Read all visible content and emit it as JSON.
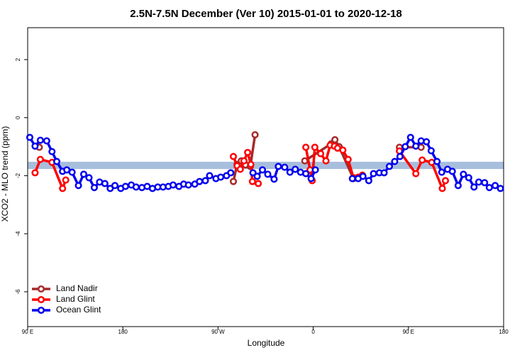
{
  "chart_data": {
    "type": "line",
    "title": "2.5N-7.5N December (Ver 10)   2015-01-01 to 2020-12-18",
    "x_label": "Longitude",
    "y_label": "XCO2 - MLO trend (ppm)",
    "xlim": [
      90,
      540
    ],
    "ylim": [
      -7.2,
      3.1
    ],
    "xticks": [
      {
        "value": 90,
        "label": "90 E"
      },
      180,
      {
        "value": 270,
        "label": "90 W"
      },
      {
        "value": 360,
        "label": "0"
      },
      {
        "value": 450,
        "label": "90 E"
      },
      {
        "value": 540,
        "label": "180"
      }
    ],
    "yticks": [
      2,
      0,
      -2,
      -4,
      -6
    ],
    "band": [
      -1.77,
      -1.52
    ],
    "band_color": "#a8bedd",
    "legend": "bottom-left",
    "series": [
      {
        "name": "Land Nadir",
        "color": "#a52a2a",
        "x": [
          101,
          140,
          284.5,
          288,
          292,
          296,
          300.5,
          305,
          340,
          352,
          377,
          380.5,
          384.5,
          398,
          420,
          441.5,
          462
        ],
        "values": [
          -1.02,
          null,
          -2.2,
          -1.61,
          -1.49,
          -1.63,
          -1.68,
          -0.59,
          null,
          -1.49,
          -0.9,
          -0.76,
          -1.0,
          -2.1,
          null,
          -1.02,
          -1.02
        ]
      },
      {
        "name": "Land Glint",
        "color": "#ff0000",
        "x": [
          97,
          102,
          113,
          123,
          126,
          200,
          284.5,
          288,
          291,
          294.5,
          298,
          301,
          302.5,
          308,
          330,
          353,
          357,
          359,
          361.5,
          367,
          372,
          376,
          380,
          383,
          388,
          393,
          398,
          402.5,
          406.5,
          420,
          441.5,
          457,
          463,
          472,
          482,
          485
        ],
        "values": [
          -1.9,
          -1.44,
          -1.54,
          -2.44,
          -2.15,
          null,
          -1.34,
          -1.66,
          -1.78,
          -1.49,
          -1.2,
          -1.61,
          -2.2,
          -2.27,
          null,
          -1.02,
          -1.8,
          -2.17,
          -1.02,
          -1.24,
          -1.49,
          -0.95,
          -0.98,
          -1.05,
          -1.12,
          -1.44,
          -2.07,
          -2.05,
          -1.98,
          null,
          -1.15,
          -1.93,
          -1.46,
          -1.54,
          -2.44,
          -2.17
        ]
      },
      {
        "name": "Ocean Glint",
        "color": "#0000ee",
        "x": [
          92,
          97,
          102,
          108,
          113,
          117.5,
          123,
          127,
          132,
          138,
          143,
          148,
          153,
          158,
          163,
          168,
          172.5,
          178,
          182.5,
          188,
          192.5,
          198,
          203,
          208,
          213,
          218,
          223,
          227.5,
          233,
          237.5,
          242,
          248,
          252.5,
          258,
          262,
          268,
          272.5,
          278,
          282,
          292,
          303,
          307,
          312,
          317,
          323,
          327,
          333,
          338,
          343,
          348,
          353,
          358,
          362,
          380,
          397,
          402.5,
          407,
          412.5,
          417,
          422.5,
          427,
          432,
          437,
          442,
          447,
          452,
          457,
          462,
          467,
          471.5,
          477,
          481.5,
          487,
          491.5,
          497,
          502,
          507,
          512,
          516.5,
          522,
          526.5,
          532,
          537
        ],
        "values": [
          -0.68,
          -0.98,
          -0.78,
          -0.8,
          -1.17,
          -1.51,
          -1.85,
          -1.8,
          -1.88,
          -2.34,
          -1.95,
          -2.07,
          -2.41,
          -2.22,
          -2.27,
          -2.44,
          -2.34,
          -2.44,
          -2.37,
          -2.32,
          -2.39,
          -2.41,
          -2.37,
          -2.44,
          -2.39,
          -2.39,
          -2.37,
          -2.32,
          -2.37,
          -2.29,
          -2.32,
          -2.29,
          -2.2,
          -2.17,
          -2.0,
          -2.1,
          -2.05,
          -2.0,
          -1.9,
          null,
          -1.9,
          -2.02,
          -1.8,
          -1.95,
          -2.12,
          -1.68,
          -1.71,
          -1.88,
          -1.78,
          -1.88,
          -1.93,
          -2.1,
          -1.8,
          null,
          -2.1,
          -2.1,
          -2.02,
          -2.17,
          -1.93,
          -1.9,
          -1.9,
          -1.68,
          -1.51,
          -1.34,
          -1.0,
          -0.68,
          -0.98,
          -0.8,
          -0.83,
          -1.14,
          -1.51,
          -1.88,
          -1.78,
          -1.85,
          -2.34,
          -1.95,
          -2.07,
          -2.39,
          -2.22,
          -2.24,
          -2.41,
          -2.34,
          -2.44
        ]
      }
    ]
  }
}
